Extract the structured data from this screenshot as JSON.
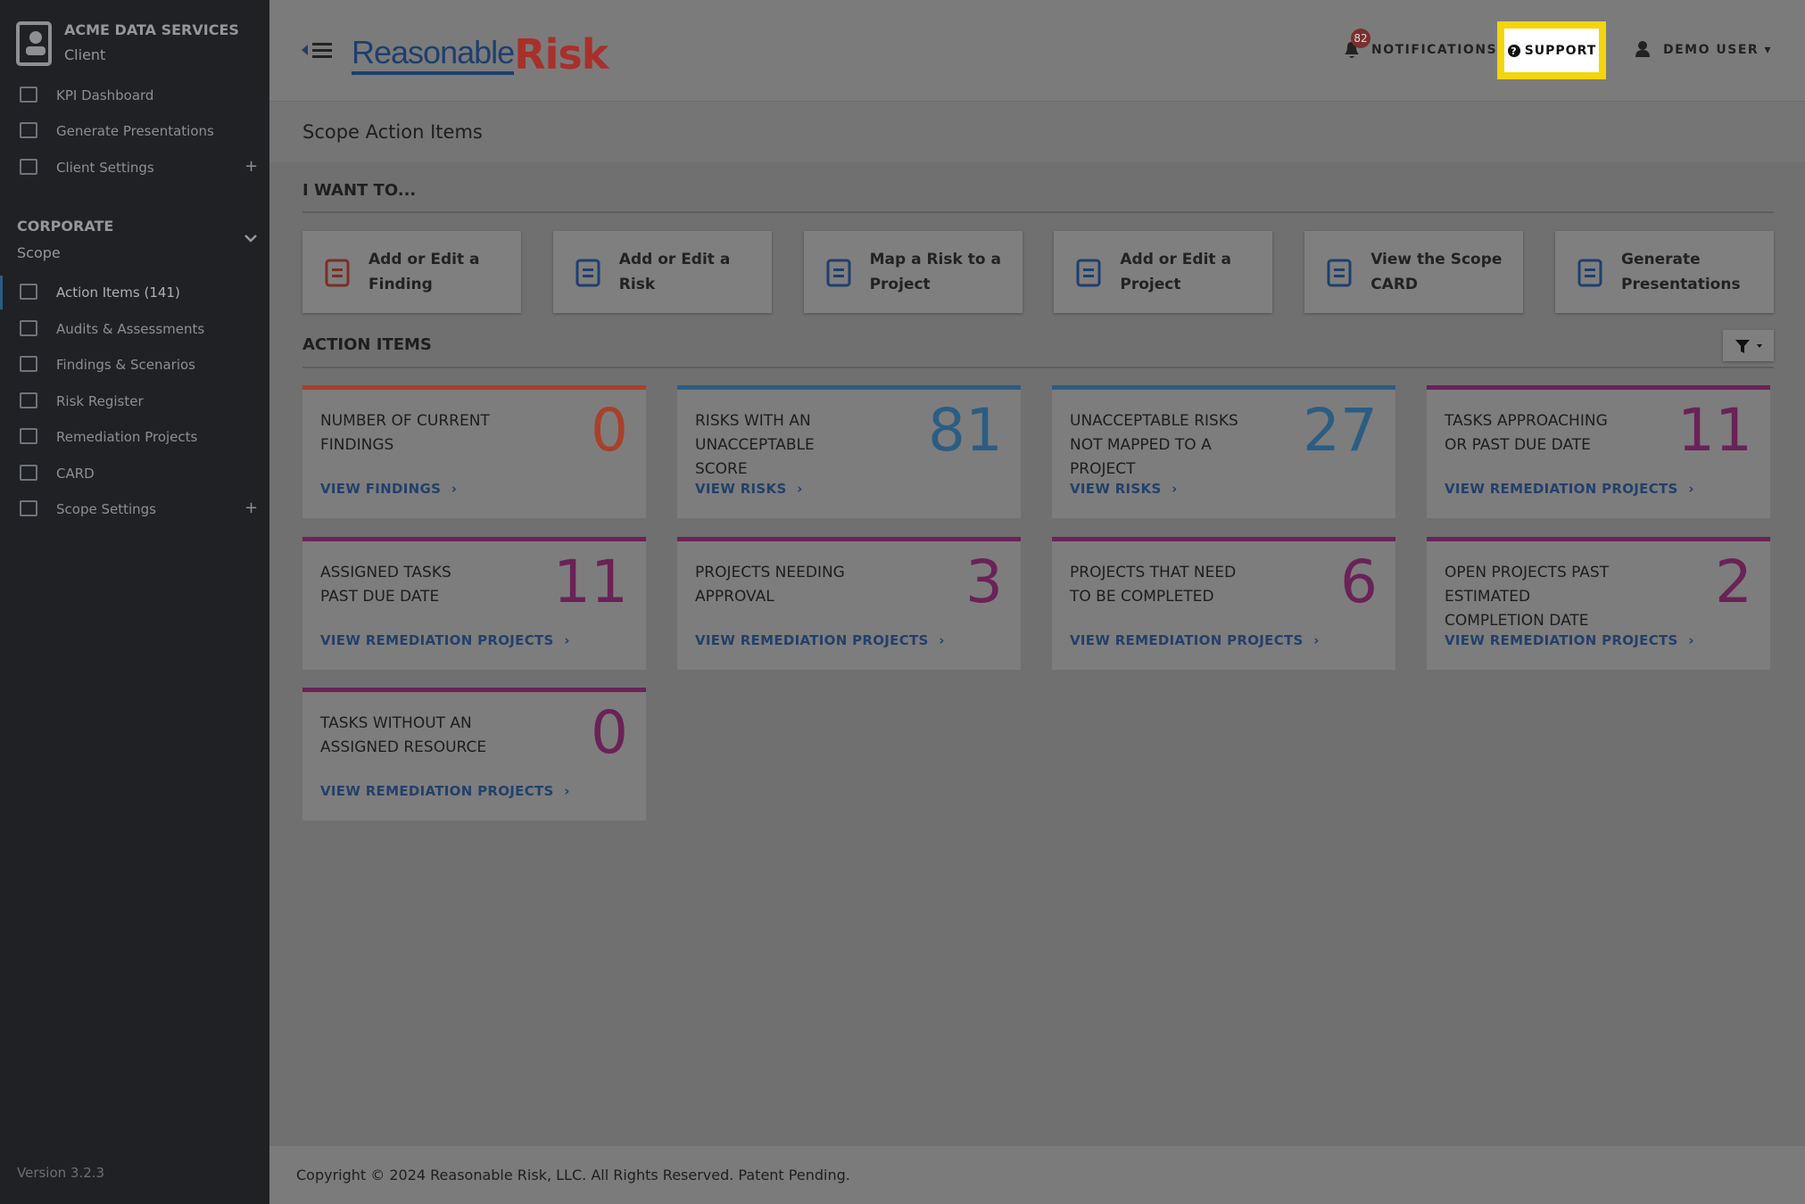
{
  "sidebar": {
    "org": "ACME DATA SERVICES",
    "org_role": "Client",
    "client_menu": [
      "KPI Dashboard",
      "Generate Presentations",
      "Client Settings"
    ],
    "section": "CORPORATE",
    "section_sub": "Scope",
    "scope_menu": [
      "Action Items (141)",
      "Audits & Assessments",
      "Findings & Scenarios",
      "Risk Register",
      "Remediation Projects",
      "CARD",
      "Scope Settings"
    ],
    "version": "Version 3.2.3"
  },
  "header": {
    "logo_a": "Reasonable",
    "logo_b": "Risk",
    "notification_count": "82",
    "notifications": "NOTIFICATIONS",
    "support": "SUPPORT",
    "user": "DEMO USER"
  },
  "page": {
    "title": "Scope Action Items",
    "want_heading": "I WANT TO...",
    "actions": [
      "Add or Edit a Finding",
      "Add or Edit a Risk",
      "Map a Risk to a Project",
      "Add or Edit a Project",
      "View the Scope CARD",
      "Generate Presentations"
    ],
    "items_heading": "ACTION ITEMS",
    "cards": [
      {
        "label": "NUMBER OF CURRENT FINDINGS",
        "count": "0",
        "link": "VIEW FINDINGS",
        "color": "#a8402a"
      },
      {
        "label": "RISKS WITH AN UNACCEPTABLE SCORE",
        "count": "81",
        "link": "VIEW RISKS",
        "color": "#2b5d83"
      },
      {
        "label": "UNACCEPTABLE RISKS NOT MAPPED TO A PROJECT",
        "count": "27",
        "link": "VIEW RISKS",
        "color": "#2b5d83"
      },
      {
        "label": "TASKS APPROACHING OR PAST DUE DATE",
        "count": "11",
        "link": "VIEW REMEDIATION PROJECTS",
        "color": "#6a2257"
      },
      {
        "label": "ASSIGNED TASKS PAST DUE DATE",
        "count": "11",
        "link": "VIEW REMEDIATION PROJECTS",
        "color": "#6a2257"
      },
      {
        "label": "PROJECTS NEEDING APPROVAL",
        "count": "3",
        "link": "VIEW REMEDIATION PROJECTS",
        "color": "#6a2257"
      },
      {
        "label": "PROJECTS THAT NEED TO BE COMPLETED",
        "count": "6",
        "link": "VIEW REMEDIATION PROJECTS",
        "color": "#6a2257"
      },
      {
        "label": "OPEN PROJECTS PAST ESTIMATED COMPLETION DATE",
        "count": "2",
        "link": "VIEW REMEDIATION PROJECTS",
        "color": "#6a2257"
      },
      {
        "label": "TASKS WITHOUT AN ASSIGNED RESOURCE",
        "count": "0",
        "link": "VIEW REMEDIATION PROJECTS",
        "color": "#6a2257"
      }
    ]
  },
  "footer": "Copyright © 2024 Reasonable Risk, LLC. All Rights Reserved. Patent Pending."
}
